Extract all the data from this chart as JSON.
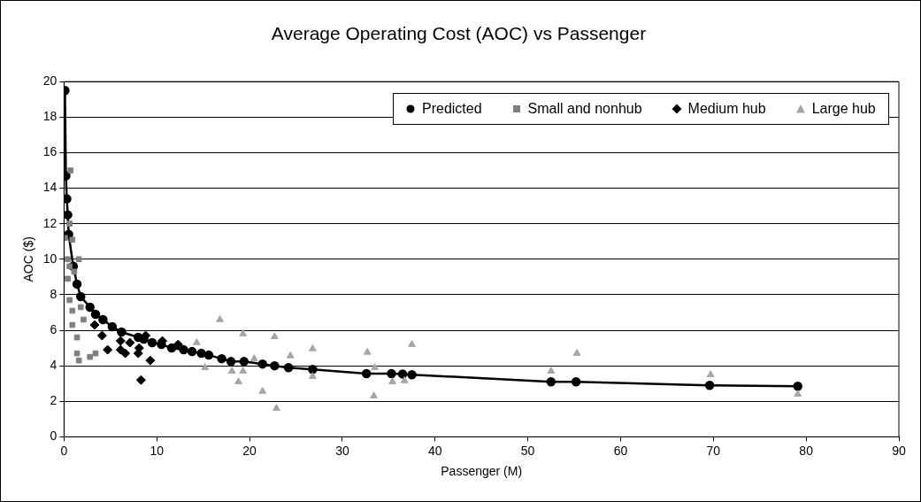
{
  "chart_data": {
    "type": "scatter",
    "title": "Average Operating Cost (AOC) vs Passenger",
    "xlabel": "Passenger (M)",
    "ylabel": "AOC ($)",
    "xlim": [
      0,
      90
    ],
    "xticks": [
      0,
      10,
      20,
      30,
      40,
      50,
      60,
      70,
      80,
      90
    ],
    "ylim": [
      0,
      20
    ],
    "yticks": [
      0,
      2,
      4,
      6,
      8,
      10,
      12,
      14,
      16,
      18,
      20
    ],
    "grid": "y",
    "legend": "top right",
    "series": [
      {
        "name": "Predicted",
        "type": "line",
        "marker": "circle",
        "color": "#000000",
        "x": [
          0.1,
          0.2,
          0.3,
          0.4,
          0.5,
          1.0,
          1.4,
          1.8,
          2.8,
          3.4,
          4.2,
          5.2,
          6.2,
          8.0,
          8.6,
          9.5,
          10.5,
          11.6,
          12.9,
          13.8,
          14.8,
          15.6,
          17.0,
          18.0,
          19.4,
          21.4,
          22.7,
          24.2,
          26.8,
          32.6,
          35.3,
          36.5,
          37.5,
          52.5,
          55.2,
          69.6,
          79.1
        ],
        "values": [
          19.5,
          14.7,
          13.4,
          12.5,
          11.4,
          9.6,
          8.6,
          7.9,
          7.3,
          6.9,
          6.6,
          6.2,
          5.9,
          5.6,
          5.5,
          5.3,
          5.2,
          5.0,
          4.9,
          4.8,
          4.7,
          4.6,
          4.4,
          4.24,
          4.24,
          4.1,
          4.0,
          3.9,
          3.8,
          3.56,
          3.56,
          3.54,
          3.5,
          3.1,
          3.1,
          2.9,
          2.85
        ]
      },
      {
        "name": "Small and nonhub",
        "type": "scatter",
        "marker": "square",
        "color": "#7f7f7f",
        "x": [
          0.7,
          0.6,
          0.1,
          0.9,
          1.6,
          0.4,
          0.6,
          0.4,
          1.1,
          0.6,
          1.8,
          0.9,
          0.9,
          2.1,
          1.4,
          1.4,
          1.6,
          2.8,
          3.4
        ],
        "values": [
          15.0,
          12.0,
          11.2,
          11.1,
          10.0,
          10.0,
          9.6,
          8.9,
          9.3,
          7.7,
          7.3,
          7.1,
          6.3,
          6.6,
          5.6,
          4.7,
          4.3,
          4.5,
          4.7
        ]
      },
      {
        "name": "Medium hub",
        "type": "scatter",
        "marker": "diamond",
        "color": "#000000",
        "x": [
          3.3,
          4.1,
          4.7,
          6.1,
          6.1,
          6.6,
          7.1,
          8.0,
          8.1,
          8.3,
          8.8,
          9.3,
          9.5,
          10.6,
          12.3
        ],
        "values": [
          6.3,
          5.7,
          4.9,
          5.4,
          4.9,
          4.7,
          5.3,
          4.7,
          5.0,
          3.2,
          5.7,
          4.3,
          5.3,
          5.4,
          5.2
        ]
      },
      {
        "name": "Large hub",
        "type": "scatter",
        "marker": "triangle",
        "color": "#a6a6a6",
        "x": [
          14.3,
          15.2,
          16.8,
          18.1,
          19.3,
          18.8,
          19.3,
          20.5,
          21.4,
          22.7,
          22.9,
          24.4,
          26.8,
          26.8,
          32.7,
          33.5,
          33.4,
          35.4,
          36.7,
          37.5,
          52.5,
          55.3,
          69.7,
          79.1
        ],
        "values": [
          5.3,
          3.9,
          6.6,
          3.7,
          5.8,
          3.1,
          3.7,
          4.4,
          2.56,
          5.64,
          1.6,
          4.56,
          4.96,
          3.4,
          4.76,
          3.9,
          2.3,
          3.1,
          3.16,
          5.2,
          3.7,
          4.7,
          3.5,
          2.4
        ]
      }
    ]
  }
}
